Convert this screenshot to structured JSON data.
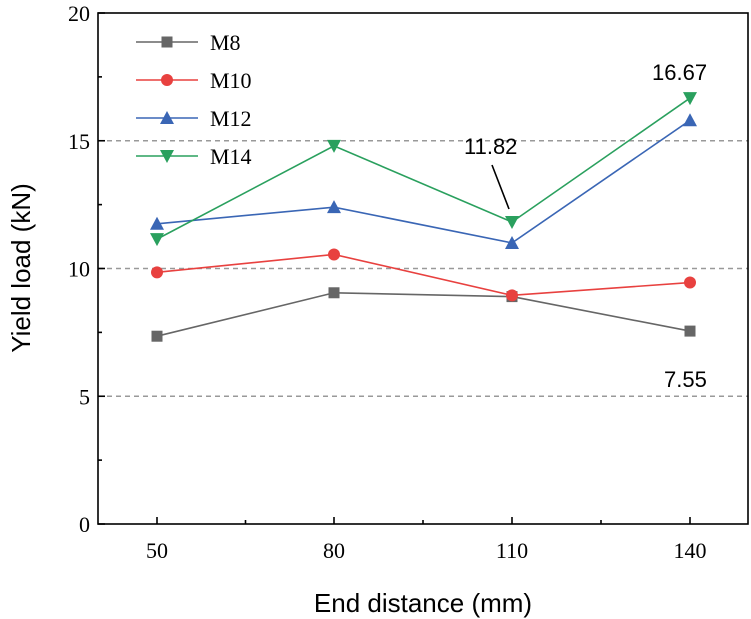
{
  "chart_data": {
    "type": "line",
    "title": "",
    "xlabel": "End distance (mm)",
    "ylabel": "Yield load (kN)",
    "categories": [
      "50",
      "80",
      "110",
      "140"
    ],
    "ylim": [
      0,
      20
    ],
    "yticks": [
      "0",
      "5",
      "10",
      "15",
      "20"
    ],
    "grid_y": [
      5,
      10,
      15
    ],
    "legend_position": "top-left",
    "series": [
      {
        "name": "M8",
        "marker": "square",
        "color": "#666666",
        "values": [
          7.35,
          9.05,
          8.9,
          7.55
        ]
      },
      {
        "name": "M10",
        "marker": "circle",
        "color": "#e8413f",
        "values": [
          9.85,
          10.55,
          8.95,
          9.45
        ]
      },
      {
        "name": "M12",
        "marker": "triangle-up",
        "color": "#3a66b5",
        "values": [
          11.75,
          12.4,
          11.0,
          15.8
        ]
      },
      {
        "name": "M14",
        "marker": "triangle-down",
        "color": "#2aa05e",
        "values": [
          11.15,
          14.8,
          11.82,
          16.67
        ]
      }
    ],
    "annotations": [
      {
        "text": "16.67",
        "series": "M14",
        "category": "140"
      },
      {
        "text": "11.82",
        "series": "M14",
        "category": "110"
      },
      {
        "text": "7.55",
        "series": "M8",
        "category": "140"
      }
    ]
  }
}
